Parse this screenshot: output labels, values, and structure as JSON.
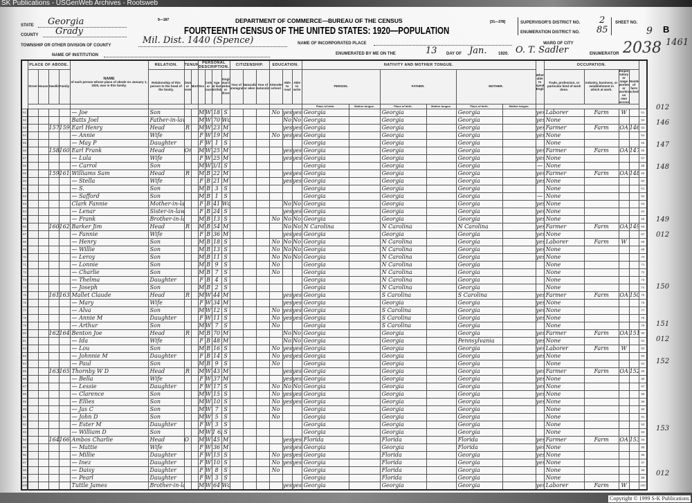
{
  "watermark": "SK Publications - USGenWeb Archives - Rootsweb",
  "copyright": "Copyright © 1999 S-K Publications",
  "form": {
    "form_no": "9—187",
    "sheet_code": "[31—378]",
    "department": "DEPARTMENT OF COMMERCE—BUREAU OF THE CENSUS",
    "title": "FOURTEENTH CENSUS OF THE UNITED STATES: 1920—POPULATION"
  },
  "header": {
    "state_label": "STATE",
    "state": "Georgia",
    "county_label": "COUNTY",
    "county": "Grady",
    "township_label": "TOWNSHIP OR OTHER DIVISION OF COUNTY",
    "township": "Mil. Dist. 1440 (Spence)",
    "institution_label": "NAME OF INSTITUTION",
    "institution": "",
    "incorporated_label": "NAME OF INCORPORATED PLACE",
    "incorporated": "",
    "enumerated_label": "ENUMERATED BY ME ON THE",
    "day": "13",
    "day_of_label": "DAY OF",
    "month": "Jan.",
    "year": "1920.",
    "enumerator": "O. T. Sadler",
    "enumerator_label": "ENUMERATOR",
    "supervisor_label": "SUPERVISOR'S DISTRICT NO.",
    "supervisor": "2",
    "ed_label": "ENUMERATION DISTRICT NO.",
    "ed": "85",
    "ward_label": "WARD OF CITY",
    "ward": "",
    "sheet_label": "SHEET NO.",
    "sheet": "9",
    "sheet_side": "B"
  },
  "annotations": {
    "page_stamp": "2038",
    "page_number": "1461"
  },
  "columns": {
    "place_of_abode": "PLACE OF ABODE.",
    "name": "NAME",
    "name_desc": "of each person whose place of abode on January 1, 1920, was in this family.",
    "relation": "RELATION.",
    "relation_desc": "Relationship of this person to the head of the family.",
    "tenure": "TENURE.",
    "personal": "PERSONAL DESCRIPTION.",
    "citizenship": "CITIZENSHIP.",
    "education": "EDUCATION.",
    "nativity": "NATIVITY AND MOTHER TONGUE.",
    "person": "PERSON.",
    "father": "FATHER.",
    "mother": "MOTHER.",
    "place_of_birth": "Place of birth.",
    "mother_tongue": "Mother tongue.",
    "english": "Whether able to speak English.",
    "occupation": "OCCUPATION.",
    "trade": "Trade, profession, or particular kind of work done.",
    "industry": "Industry, business, or establishment in which at work.",
    "class": "Employer, salary or wage worker, or working on own account.",
    "sub": [
      "Street",
      "House",
      "Dwelling",
      "Family",
      "Owned or rented",
      "Mortgaged",
      "Sex",
      "Color or race",
      "Age at last birthday",
      "Single, married, widowed, or divorced",
      "Year of immigration",
      "Naturalized or alien",
      "Year of naturalization",
      "Attended school",
      "Able to read",
      "Able to write",
      "Number of farm schedule"
    ]
  },
  "rows": [
    [
      "51",
      "",
      "",
      "",
      "— Joe",
      "Son",
      "",
      "M",
      "W",
      "18",
      "S",
      "No",
      "yes",
      "yes",
      "Georgia",
      "Georgia",
      "Georgia",
      "yes",
      "Laborer",
      "Farm",
      "W",
      "",
      "012"
    ],
    [
      "52",
      "",
      "",
      "",
      "Batts Joel",
      "Father-in-law",
      "",
      "M",
      "W",
      "70",
      "Wd",
      "",
      "No",
      "No",
      "Georgia",
      "Georgia",
      "Georgia",
      "yes",
      "None",
      "",
      "",
      "",
      ""
    ],
    [
      "53",
      "",
      "157",
      "159",
      "Earl Henry",
      "Head",
      "R",
      "M",
      "W",
      "23",
      "M",
      "",
      "yes",
      "yes",
      "Georgia",
      "Georgia",
      "Georgia",
      "yes",
      "Farmer",
      "Farm",
      "OA",
      "146",
      "146"
    ],
    [
      "54",
      "",
      "",
      "",
      "— Annie",
      "Wife",
      "",
      "F",
      "W",
      "19",
      "M",
      "No",
      "yes",
      "yes",
      "Georgia",
      "Georgia",
      "Georgia",
      "yes",
      "None",
      "",
      "",
      "",
      ""
    ],
    [
      "55",
      "",
      "",
      "",
      "— May P",
      "Daughter",
      "",
      "F",
      "W",
      "1",
      "S",
      "",
      "",
      "",
      "Georgia",
      "Georgia",
      "Georgia",
      "",
      "None",
      "",
      "",
      "",
      ""
    ],
    [
      "56",
      "",
      "158",
      "160",
      "Earl Frank",
      "Head",
      "Om",
      "M",
      "W",
      "25",
      "M",
      "",
      "yes",
      "yes",
      "Georgia",
      "Georgia",
      "Georgia",
      "yes",
      "Farmer",
      "Farm",
      "OA",
      "147",
      "147"
    ],
    [
      "57",
      "",
      "",
      "",
      "— Lula",
      "Wife",
      "",
      "F",
      "W",
      "25",
      "M",
      "",
      "yes",
      "yes",
      "Georgia",
      "Georgia",
      "Georgia",
      "yes",
      "None",
      "",
      "",
      "",
      ""
    ],
    [
      "58",
      "",
      "",
      "",
      "— Carrol",
      "Son",
      "",
      "M",
      "W",
      "3/12",
      "S",
      "",
      "",
      "",
      "Georgia",
      "Georgia",
      "Georgia",
      "—",
      "None",
      "",
      "",
      "",
      ""
    ],
    [
      "59",
      "",
      "159",
      "161",
      "Williams Sam",
      "Head",
      "R",
      "M",
      "B",
      "22",
      "M",
      "",
      "yes",
      "yes",
      "Georgia",
      "Georgia",
      "Georgia",
      "yes",
      "Farmer",
      "Farm",
      "OA",
      "148",
      "148"
    ],
    [
      "60",
      "",
      "",
      "",
      "— Stella",
      "Wife",
      "",
      "F",
      "B",
      "21",
      "M",
      "",
      "yes",
      "yes",
      "Georgia",
      "Georgia",
      "Georgia",
      "yes",
      "None",
      "",
      "",
      "",
      ""
    ],
    [
      "61",
      "",
      "",
      "",
      "— S.",
      "Son",
      "",
      "M",
      "B",
      "3",
      "S",
      "",
      "",
      "",
      "Georgia",
      "Georgia",
      "Georgia",
      "",
      "None",
      "",
      "",
      "",
      ""
    ],
    [
      "62",
      "",
      "",
      "",
      "— Safford",
      "Son",
      "",
      "M",
      "B",
      "1",
      "S",
      "",
      "",
      "",
      "Georgia",
      "Georgia",
      "Georgia",
      "—",
      "None",
      "",
      "",
      "",
      ""
    ],
    [
      "63",
      "",
      "",
      "",
      "Clark Fannie",
      "Mother-in-law",
      "",
      "F",
      "B",
      "41",
      "Wd",
      "",
      "No",
      "No",
      "Georgia",
      "Georgia",
      "Georgia",
      "yes",
      "None",
      "",
      "",
      "",
      ""
    ],
    [
      "64",
      "",
      "",
      "",
      "— Lenar",
      "Sister-in-law",
      "",
      "F",
      "B",
      "24",
      "S",
      "",
      "yes",
      "yes",
      "Georgia",
      "Georgia",
      "Georgia",
      "yes",
      "None",
      "",
      "",
      "",
      ""
    ],
    [
      "65",
      "",
      "",
      "",
      "— Frank",
      "Brother-in-law",
      "",
      "M",
      "B",
      "13",
      "S",
      "No",
      "No",
      "No",
      "Georgia",
      "Georgia",
      "Georgia",
      "yes",
      "None",
      "",
      "",
      "",
      ""
    ],
    [
      "66",
      "",
      "160",
      "162",
      "Barker Jim",
      "Head",
      "R",
      "M",
      "B",
      "54",
      "M",
      "",
      "No",
      "No",
      "N Carolina",
      "N Carolina",
      "N Carolina",
      "yes",
      "Farmer",
      "Farm",
      "OA",
      "149",
      "149"
    ],
    [
      "67",
      "",
      "",
      "",
      "— Fannie",
      "Wife",
      "",
      "F",
      "B",
      "36",
      "M",
      "",
      "yes",
      "yes",
      "Georgia",
      "Georgia",
      "Georgia",
      "yes",
      "None",
      "",
      "",
      "",
      ""
    ],
    [
      "68",
      "",
      "",
      "",
      "— Henry",
      "Son",
      "",
      "M",
      "B",
      "18",
      "S",
      "No",
      "No",
      "No",
      "Georgia",
      "N Carolina",
      "Georgia",
      "yes",
      "Laborer",
      "Farm",
      "W",
      "",
      "012"
    ],
    [
      "69",
      "",
      "",
      "",
      "— Willie",
      "Son",
      "",
      "M",
      "B",
      "13",
      "S",
      "No",
      "No",
      "No",
      "Georgia",
      "N Carolina",
      "Georgia",
      "yes",
      "None",
      "",
      "",
      "",
      ""
    ],
    [
      "70",
      "",
      "",
      "",
      "— Leroy",
      "Son",
      "",
      "M",
      "B",
      "11",
      "S",
      "No",
      "No",
      "No",
      "Georgia",
      "N Carolina",
      "Georgia",
      "yes",
      "None",
      "",
      "",
      "",
      ""
    ],
    [
      "71",
      "",
      "",
      "",
      "— Lonnie",
      "Son",
      "",
      "M",
      "B",
      "9",
      "S",
      "No",
      "",
      "",
      "Georgia",
      "N Carolina",
      "Georgia",
      "",
      "None",
      "",
      "",
      "",
      ""
    ],
    [
      "72",
      "",
      "",
      "",
      "— Charlie",
      "Son",
      "",
      "M",
      "B",
      "7",
      "S",
      "No",
      "",
      "",
      "Georgia",
      "N Carolina",
      "Georgia",
      "",
      "None",
      "",
      "",
      "",
      ""
    ],
    [
      "73",
      "",
      "",
      "",
      "— Thelma",
      "Daughter",
      "",
      "F",
      "B",
      "4",
      "S",
      "",
      "",
      "",
      "Georgia",
      "N Carolina",
      "Georgia",
      "",
      "None",
      "",
      "",
      "",
      ""
    ],
    [
      "74",
      "",
      "",
      "",
      "— Joseph",
      "Son",
      "",
      "M",
      "B",
      "2",
      "S",
      "",
      "",
      "",
      "Georgia",
      "N Carolina",
      "Georgia",
      "",
      "None",
      "",
      "",
      "",
      ""
    ],
    [
      "75",
      "",
      "161",
      "163",
      "Mallet Claude",
      "Head",
      "R",
      "M",
      "W",
      "44",
      "M",
      "",
      "yes",
      "yes",
      "Georgia",
      "S Carolina",
      "S Carolina",
      "yes",
      "Farmer",
      "Farm",
      "OA",
      "150",
      "150"
    ],
    [
      "76",
      "",
      "",
      "",
      "— Mary",
      "Wife",
      "",
      "F",
      "W",
      "34",
      "M",
      "",
      "yes",
      "yes",
      "Georgia",
      "Georgia",
      "Georgia",
      "yes",
      "None",
      "",
      "",
      "",
      ""
    ],
    [
      "77",
      "",
      "",
      "",
      "— Alva",
      "Son",
      "",
      "M",
      "W",
      "12",
      "S",
      "No",
      "yes",
      "yes",
      "Georgia",
      "S Carolina",
      "Georgia",
      "yes",
      "None",
      "",
      "",
      "",
      ""
    ],
    [
      "78",
      "",
      "",
      "",
      "— Annie M",
      "Daughter",
      "",
      "F",
      "W",
      "11",
      "S",
      "No",
      "yes",
      "yes",
      "Georgia",
      "S Carolina",
      "Georgia",
      "yes",
      "None",
      "",
      "",
      "",
      ""
    ],
    [
      "79",
      "",
      "",
      "",
      "— Arthur",
      "Son",
      "",
      "M",
      "W",
      "7",
      "S",
      "No",
      "",
      "",
      "Georgia",
      "S Carolina",
      "Georgia",
      "",
      "None",
      "",
      "",
      "",
      ""
    ],
    [
      "80",
      "",
      "162",
      "164",
      "Benton Joe",
      "Head",
      "R",
      "M",
      "B",
      "70",
      "M",
      "",
      "No",
      "No",
      "Georgia",
      "Georgia",
      "Georgia",
      "yes",
      "Farmer",
      "Farm",
      "OA",
      "151",
      "151"
    ],
    [
      "81",
      "",
      "",
      "",
      "— Ida",
      "Wife",
      "",
      "F",
      "B",
      "48",
      "M",
      "",
      "No",
      "No",
      "Georgia",
      "Georgia",
      "Pennsylvania",
      "yes",
      "None",
      "",
      "",
      "",
      ""
    ],
    [
      "82",
      "",
      "",
      "",
      "— Lou",
      "Son",
      "",
      "M",
      "B",
      "16",
      "S",
      "No",
      "yes",
      "yes",
      "Georgia",
      "Georgia",
      "Georgia",
      "yes",
      "Laborer",
      "Farm",
      "W",
      "",
      "012"
    ],
    [
      "83",
      "",
      "",
      "",
      "— Johnnie M",
      "Daughter",
      "",
      "F",
      "B",
      "14",
      "S",
      "No",
      "yes",
      "yes",
      "Georgia",
      "Georgia",
      "Georgia",
      "yes",
      "None",
      "",
      "",
      "",
      ""
    ],
    [
      "84",
      "",
      "",
      "",
      "— Paul",
      "Son",
      "",
      "M",
      "B",
      "9",
      "S",
      "No",
      "",
      "",
      "Georgia",
      "Georgia",
      "Georgia",
      "",
      "None",
      "",
      "",
      "",
      ""
    ],
    [
      "85",
      "",
      "163",
      "165",
      "Thornby W D",
      "Head",
      "R",
      "M",
      "W",
      "43",
      "M",
      "",
      "yes",
      "yes",
      "Georgia",
      "Georgia",
      "Georgia",
      "yes",
      "Farmer",
      "Farm",
      "OA",
      "152",
      "152"
    ],
    [
      "86",
      "",
      "",
      "",
      "— Bella",
      "Wife",
      "",
      "F",
      "W",
      "37",
      "M",
      "",
      "yes",
      "yes",
      "Georgia",
      "Georgia",
      "Georgia",
      "yes",
      "None",
      "",
      "",
      "",
      ""
    ],
    [
      "87",
      "",
      "",
      "",
      "— Lessie",
      "Daughter",
      "",
      "F",
      "W",
      "17",
      "S",
      "No",
      "No",
      "No",
      "Georgia",
      "Georgia",
      "Georgia",
      "yes",
      "None",
      "",
      "",
      "",
      ""
    ],
    [
      "88",
      "",
      "",
      "",
      "— Clarence",
      "Son",
      "",
      "M",
      "W",
      "15",
      "S",
      "No",
      "yes",
      "yes",
      "Georgia",
      "Georgia",
      "Georgia",
      "yes",
      "None",
      "",
      "",
      "",
      ""
    ],
    [
      "89",
      "",
      "",
      "",
      "— Ellies",
      "Son",
      "",
      "M",
      "W",
      "10",
      "S",
      "No",
      "yes",
      "yes",
      "Georgia",
      "Georgia",
      "Georgia",
      "yes",
      "None",
      "",
      "",
      "",
      ""
    ],
    [
      "90",
      "",
      "",
      "",
      "— Jas C",
      "Son",
      "",
      "M",
      "W",
      "7",
      "S",
      "No",
      "",
      "",
      "Georgia",
      "Georgia",
      "Georgia",
      "",
      "None",
      "",
      "",
      "",
      ""
    ],
    [
      "91",
      "",
      "",
      "",
      "— John D",
      "Son",
      "",
      "M",
      "W",
      "5",
      "S",
      "No",
      "",
      "",
      "Georgia",
      "Georgia",
      "Georgia",
      "",
      "None",
      "",
      "",
      "",
      ""
    ],
    [
      "92",
      "",
      "",
      "",
      "— Ester M",
      "Daughter",
      "",
      "F",
      "W",
      "3",
      "S",
      "",
      "",
      "",
      "Georgia",
      "Georgia",
      "Georgia",
      "",
      "None",
      "",
      "",
      "",
      ""
    ],
    [
      "93",
      "",
      "",
      "",
      "— William D",
      "Son",
      "",
      "M",
      "W",
      "1 6/12",
      "S",
      "",
      "",
      "",
      "Georgia",
      "Georgia",
      "Georgia",
      "",
      "None",
      "",
      "",
      "",
      ""
    ],
    [
      "94",
      "",
      "164",
      "166",
      "Ambos Charlie",
      "Head",
      "O M",
      "M",
      "W",
      "45",
      "M",
      "",
      "yes",
      "yes",
      "Florida",
      "Florida",
      "Florida",
      "yes",
      "Farmer",
      "Farm",
      "OA",
      "153",
      "153"
    ],
    [
      "95",
      "",
      "",
      "",
      "— Mattie",
      "Wife",
      "",
      "F",
      "W",
      "36",
      "M",
      "",
      "yes",
      "yes",
      "Georgia",
      "Georgia",
      "Florida",
      "yes",
      "None",
      "",
      "",
      "",
      ""
    ],
    [
      "96",
      "",
      "",
      "",
      "— Millie",
      "Daughter",
      "",
      "F",
      "W",
      "15",
      "S",
      "No",
      "yes",
      "yes",
      "Georgia",
      "Florida",
      "Georgia",
      "yes",
      "None",
      "",
      "",
      "",
      ""
    ],
    [
      "97",
      "",
      "",
      "",
      "— Inez",
      "Daughter",
      "",
      "F",
      "W",
      "10",
      "S",
      "No",
      "yes",
      "yes",
      "Georgia",
      "Florida",
      "Georgia",
      "yes",
      "None",
      "",
      "",
      "",
      ""
    ],
    [
      "98",
      "",
      "",
      "",
      "— Daisy",
      "Daughter",
      "",
      "F",
      "W",
      "8",
      "S",
      "No",
      "",
      "",
      "Georgia",
      "Florida",
      "Georgia",
      "",
      "None",
      "",
      "",
      "",
      ""
    ],
    [
      "99",
      "",
      "",
      "",
      "— Pearl",
      "Daughter",
      "",
      "F",
      "W",
      "3",
      "S",
      "",
      "",
      "",
      "Georgia",
      "Florida",
      "Georgia",
      "",
      "None",
      "",
      "",
      "",
      ""
    ],
    [
      "100",
      "",
      "",
      "",
      "Tuttle James",
      "Brother-in-law",
      "",
      "M",
      "W",
      "64",
      "Wd",
      "",
      "yes",
      "yes",
      "Georgia",
      "Georgia",
      "Georgia",
      "yes",
      "Laborer",
      "Farm",
      "W",
      "",
      "012"
    ]
  ]
}
